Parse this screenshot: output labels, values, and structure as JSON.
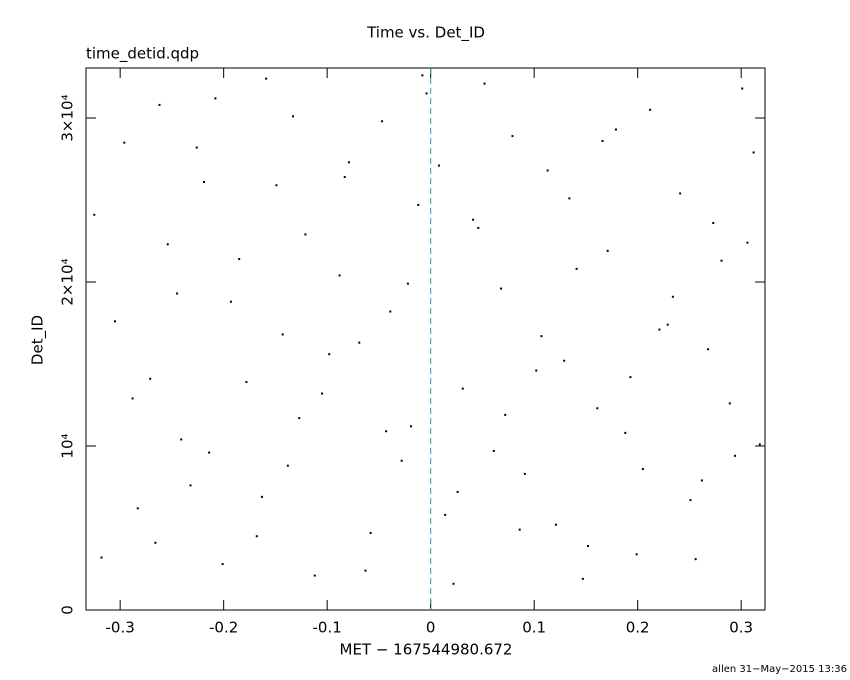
{
  "chart_data": {
    "type": "scatter",
    "title": "Time vs. Det_ID",
    "subtitle": "time_detid.qdp",
    "x_label": "MET − 167544980.672",
    "y_label": "Det_ID",
    "footer": "allen 31−May−2015 13:36",
    "xlim": [
      -0.333,
      0.323
    ],
    "ylim": [
      0,
      33050
    ],
    "xticks": [
      -0.3,
      -0.2,
      -0.1,
      0,
      0.1,
      0.2,
      0.3
    ],
    "yticks": [
      0,
      {
        "value": 10000,
        "label": "10⁴"
      },
      {
        "value": 20000,
        "label": "2×10⁴"
      },
      {
        "value": 30000,
        "label": "3×10⁴"
      }
    ],
    "vline": 0,
    "vline_color": "#2aa0b0",
    "color": "#000000",
    "series": [
      {
        "color": "#000000",
        "x": [
          -0.318,
          -0.296,
          -0.271,
          -0.254,
          -0.232,
          -0.208,
          -0.193,
          -0.168,
          -0.149,
          -0.127,
          -0.112,
          -0.088,
          -0.069,
          -0.047,
          -0.028,
          -0.012,
          0.014,
          0.031,
          0.052,
          0.068,
          0.091,
          0.113,
          0.129,
          0.152,
          0.171,
          0.188,
          0.212,
          0.229,
          0.251,
          0.273,
          0.289,
          0.312,
          -0.305,
          -0.283,
          -0.262,
          -0.241,
          -0.219,
          -0.201,
          -0.178,
          -0.159,
          -0.138,
          -0.121,
          -0.098,
          -0.079,
          -0.058,
          -0.039,
          -0.019,
          -0.004,
          0.022,
          0.041,
          0.061,
          0.079,
          0.102,
          0.121,
          0.141,
          0.161,
          0.179,
          0.199,
          0.221,
          0.241,
          0.262,
          0.281,
          0.301,
          0.318,
          -0.325,
          -0.288,
          -0.266,
          -0.245,
          -0.226,
          -0.214,
          -0.185,
          -0.163,
          -0.143,
          -0.133,
          -0.105,
          -0.083,
          -0.063,
          -0.043,
          -0.022,
          -0.008,
          0.008,
          0.026,
          0.046,
          0.072,
          0.086,
          0.107,
          0.134,
          0.147,
          0.166,
          0.193,
          0.205,
          0.234,
          0.256,
          0.268,
          0.294,
          0.306
        ],
        "values": [
          3200,
          28500,
          14100,
          22300,
          7600,
          31200,
          18800,
          4500,
          25900,
          11700,
          2100,
          20400,
          16300,
          29800,
          9100,
          24700,
          5800,
          13500,
          32100,
          19600,
          8300,
          26800,
          15200,
          3900,
          21900,
          10800,
          30500,
          17400,
          6700,
          23600,
          12600,
          27900,
          17600,
          6200,
          30800,
          10400,
          26100,
          2800,
          13900,
          32400,
          8800,
          22900,
          15600,
          27300,
          4700,
          18200,
          11200,
          31500,
          1600,
          23800,
          9700,
          28900,
          14600,
          5200,
          20800,
          12300,
          29300,
          3400,
          17100,
          25400,
          7900,
          21300,
          31800,
          10100,
          24100,
          12900,
          4100,
          19300,
          28200,
          9600,
          21400,
          6900,
          16800,
          30100,
          13200,
          26400,
          2400,
          10900,
          19900,
          32600,
          27100,
          7200,
          23300,
          11900,
          4900,
          16700,
          25100,
          1900,
          28600,
          14200,
          8600,
          19100,
          3100,
          15900,
          9400,
          22400
        ]
      }
    ]
  }
}
